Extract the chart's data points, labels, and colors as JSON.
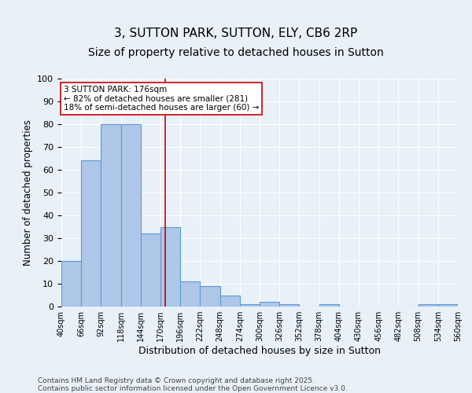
{
  "title": "3, SUTTON PARK, SUTTON, ELY, CB6 2RP",
  "subtitle": "Size of property relative to detached houses in Sutton",
  "xlabel": "Distribution of detached houses by size in Sutton",
  "ylabel": "Number of detached properties",
  "bin_labels": [
    "40sqm",
    "66sqm",
    "92sqm",
    "118sqm",
    "144sqm",
    "170sqm",
    "196sqm",
    "222sqm",
    "248sqm",
    "274sqm",
    "300sqm",
    "326sqm",
    "352sqm",
    "378sqm",
    "404sqm",
    "430sqm",
    "456sqm",
    "482sqm",
    "508sqm",
    "534sqm",
    "560sqm"
  ],
  "bin_edges": [
    40,
    66,
    92,
    118,
    144,
    170,
    196,
    222,
    248,
    274,
    300,
    326,
    352,
    378,
    404,
    430,
    456,
    482,
    508,
    534,
    560
  ],
  "bar_heights": [
    20,
    64,
    80,
    80,
    32,
    35,
    11,
    9,
    5,
    1,
    2,
    1,
    0,
    1,
    0,
    0,
    0,
    0,
    1,
    1
  ],
  "bar_color": "#aec6e8",
  "bar_edge_color": "#5b9bd5",
  "property_size": 176,
  "vline_color": "#cc0000",
  "annotation_text": "3 SUTTON PARK: 176sqm\n← 82% of detached houses are smaller (281)\n18% of semi-detached houses are larger (60) →",
  "annotation_box_color": "#ffffff",
  "annotation_box_edge_color": "#cc0000",
  "ylim": [
    0,
    100
  ],
  "yticks": [
    0,
    10,
    20,
    30,
    40,
    50,
    60,
    70,
    80,
    90,
    100
  ],
  "footer": "Contains HM Land Registry data © Crown copyright and database right 2025.\nContains public sector information licensed under the Open Government Licence v3.0.",
  "background_color": "#e8f0f8",
  "plot_background_color": "#e8f0f8",
  "title_fontsize": 11,
  "subtitle_fontsize": 10
}
